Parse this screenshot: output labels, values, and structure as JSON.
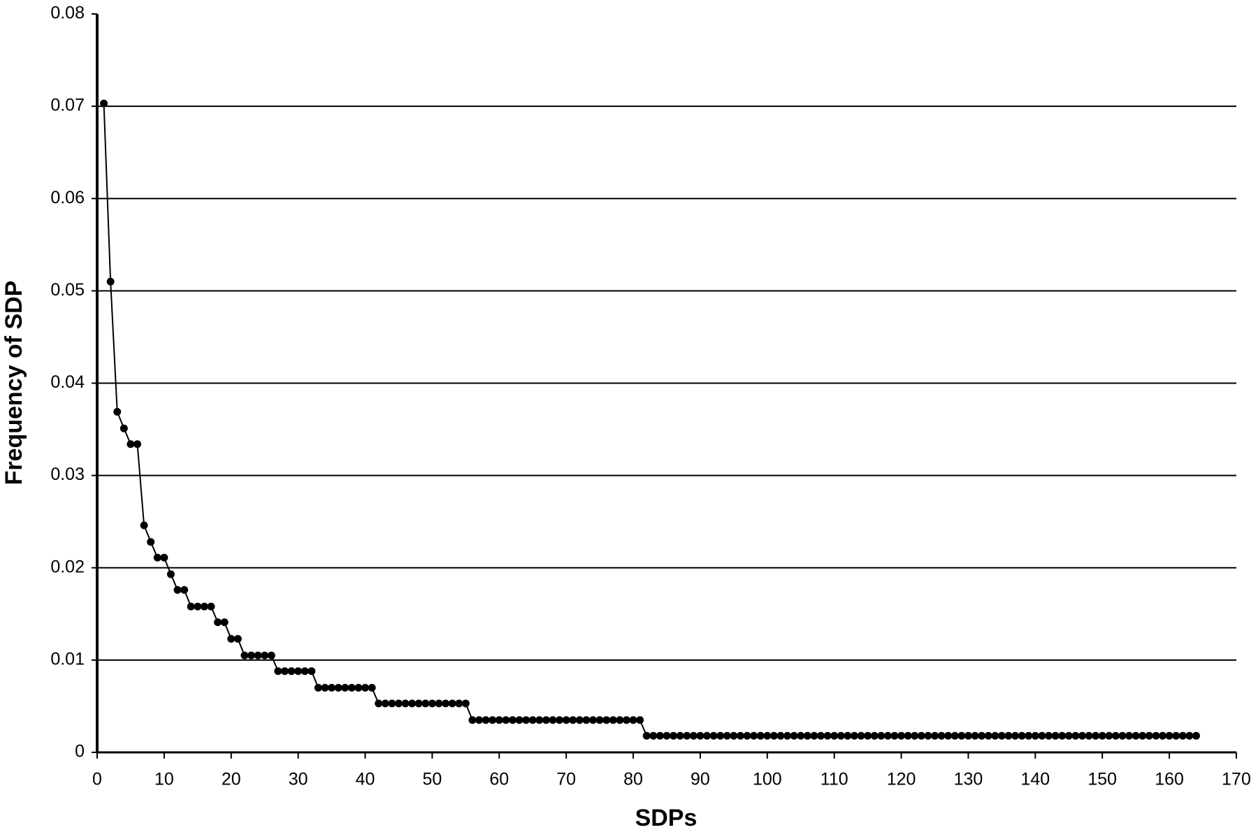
{
  "chart_data": {
    "type": "line",
    "xlabel": "SDPs",
    "ylabel": "Frequency of SDP",
    "color": "#000000",
    "grid": true,
    "marker": "circle",
    "x": [
      1,
      2,
      3,
      4,
      5,
      6,
      7,
      8,
      9,
      10,
      11,
      12,
      13,
      14,
      15,
      16,
      17,
      18,
      19,
      20,
      21,
      22,
      23,
      24,
      25,
      26,
      27,
      28,
      29,
      30,
      31,
      32,
      33,
      34,
      35,
      36,
      37,
      38,
      39,
      40,
      41,
      42,
      43,
      44,
      45,
      46,
      47,
      48,
      49,
      50,
      51,
      52,
      53,
      54,
      55,
      56,
      57,
      58,
      59,
      60,
      61,
      62,
      63,
      64,
      65,
      66,
      67,
      68,
      69,
      70,
      71,
      72,
      73,
      74,
      75,
      76,
      77,
      78,
      79,
      80,
      81,
      82,
      83,
      84,
      85,
      86,
      87,
      88,
      89,
      90,
      91,
      92,
      93,
      94,
      95,
      96,
      97,
      98,
      99,
      100,
      101,
      102,
      103,
      104,
      105,
      106,
      107,
      108,
      109,
      110,
      111,
      112,
      113,
      114,
      115,
      116,
      117,
      118,
      119,
      120,
      121,
      122,
      123,
      124,
      125,
      126,
      127,
      128,
      129,
      130,
      131,
      132,
      133,
      134,
      135,
      136,
      137,
      138,
      139,
      140,
      141,
      142,
      143,
      144,
      145,
      146,
      147,
      148,
      149,
      150,
      151,
      152,
      153,
      154,
      155,
      156,
      157,
      158,
      159,
      160,
      161,
      162,
      163,
      164
    ],
    "values": [
      0.0703,
      0.051,
      0.0369,
      0.0351,
      0.0334,
      0.0334,
      0.0246,
      0.0228,
      0.0211,
      0.0211,
      0.0193,
      0.0176,
      0.0176,
      0.0158,
      0.0158,
      0.0158,
      0.0158,
      0.0141,
      0.0141,
      0.0123,
      0.0123,
      0.0105,
      0.0105,
      0.0105,
      0.0105,
      0.0105,
      0.0088,
      0.0088,
      0.0088,
      0.0088,
      0.0088,
      0.0088,
      0.007,
      0.007,
      0.007,
      0.007,
      0.007,
      0.007,
      0.007,
      0.007,
      0.007,
      0.0053,
      0.0053,
      0.0053,
      0.0053,
      0.0053,
      0.0053,
      0.0053,
      0.0053,
      0.0053,
      0.0053,
      0.0053,
      0.0053,
      0.0053,
      0.0053,
      0.0035,
      0.0035,
      0.0035,
      0.0035,
      0.0035,
      0.0035,
      0.0035,
      0.0035,
      0.0035,
      0.0035,
      0.0035,
      0.0035,
      0.0035,
      0.0035,
      0.0035,
      0.0035,
      0.0035,
      0.0035,
      0.0035,
      0.0035,
      0.0035,
      0.0035,
      0.0035,
      0.0035,
      0.0035,
      0.0035,
      0.0018,
      0.0018,
      0.0018,
      0.0018,
      0.0018,
      0.0018,
      0.0018,
      0.0018,
      0.0018,
      0.0018,
      0.0018,
      0.0018,
      0.0018,
      0.0018,
      0.0018,
      0.0018,
      0.0018,
      0.0018,
      0.0018,
      0.0018,
      0.0018,
      0.0018,
      0.0018,
      0.0018,
      0.0018,
      0.0018,
      0.0018,
      0.0018,
      0.0018,
      0.0018,
      0.0018,
      0.0018,
      0.0018,
      0.0018,
      0.0018,
      0.0018,
      0.0018,
      0.0018,
      0.0018,
      0.0018,
      0.0018,
      0.0018,
      0.0018,
      0.0018,
      0.0018,
      0.0018,
      0.0018,
      0.0018,
      0.0018,
      0.0018,
      0.0018,
      0.0018,
      0.0018,
      0.0018,
      0.0018,
      0.0018,
      0.0018,
      0.0018,
      0.0018,
      0.0018,
      0.0018,
      0.0018,
      0.0018,
      0.0018,
      0.0018,
      0.0018,
      0.0018,
      0.0018,
      0.0018,
      0.0018,
      0.0018,
      0.0018,
      0.0018,
      0.0018,
      0.0018,
      0.0018,
      0.0018,
      0.0018,
      0.0018,
      0.0018,
      0.0018,
      0.0018,
      0.0018
    ],
    "xlim": [
      0,
      170
    ],
    "xticks": [
      0,
      10,
      20,
      30,
      40,
      50,
      60,
      70,
      80,
      90,
      100,
      110,
      120,
      130,
      140,
      150,
      160,
      170
    ],
    "ylim": [
      0,
      0.08
    ],
    "yticks": [
      0,
      0.01,
      0.02,
      0.03,
      0.04,
      0.05,
      0.06,
      0.07,
      0.08
    ]
  }
}
